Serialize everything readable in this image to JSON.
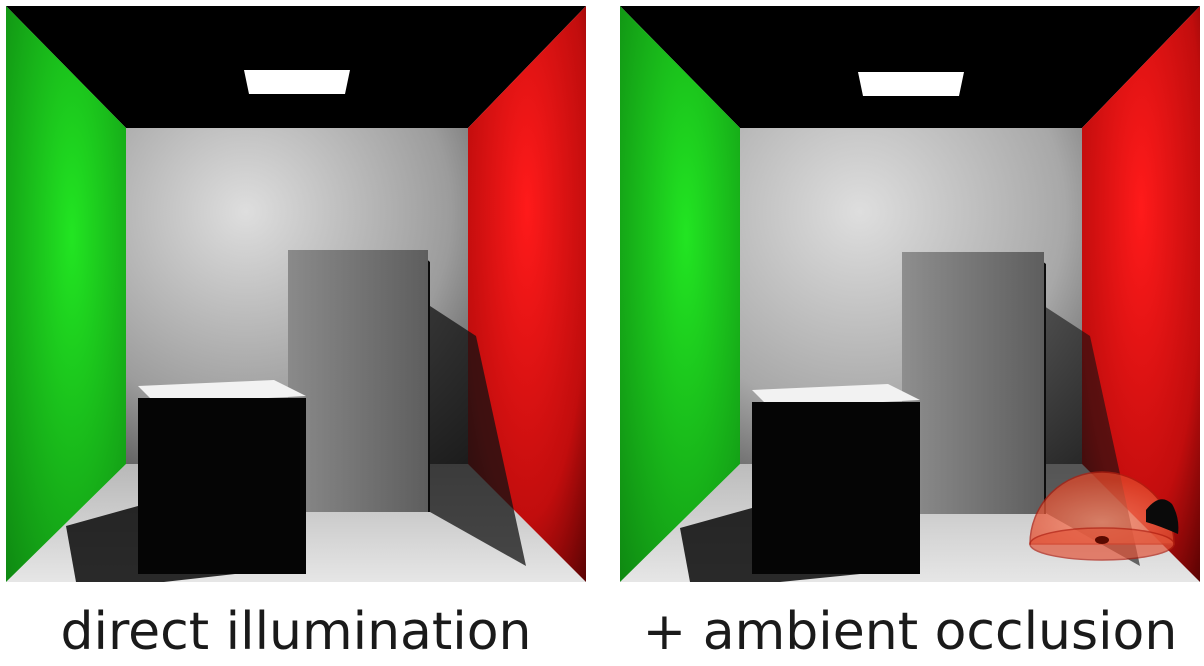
{
  "panels": [
    {
      "caption": "direct illumination"
    },
    {
      "caption": "+ ambient occlusion"
    }
  ],
  "colors": {
    "left_wall": "#1ed11e",
    "right_wall": "#e01010",
    "ceiling": "#000000",
    "back_wall": "#cfcfcf",
    "floor": "#d6d6d6",
    "hemisphere": "#e85a3a"
  }
}
